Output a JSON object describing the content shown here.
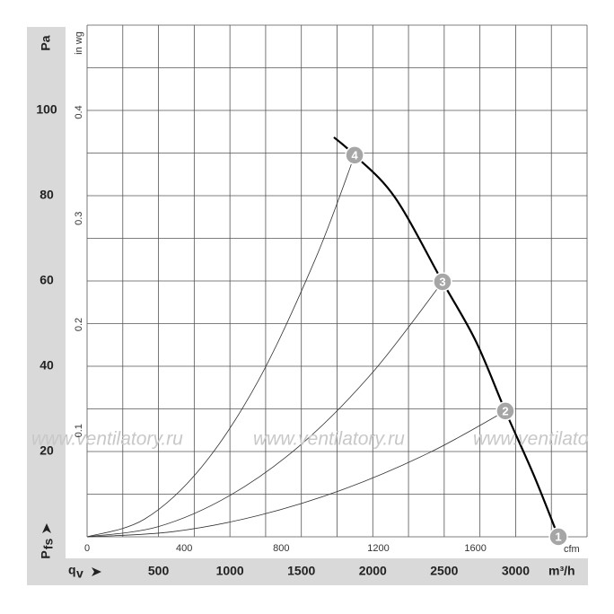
{
  "chart_data": {
    "type": "line",
    "y_unit": "Pa",
    "y2_unit": "in wg",
    "y_label": "P",
    "y_label_sub": "fs",
    "x_label": "q",
    "x_label_sub": "v",
    "x_unit": "m³/h",
    "x2_unit": "cfm",
    "watermark": "www.ventilatory.ru",
    "xlim": [
      0,
      3500
    ],
    "xticks": [
      500,
      1000,
      1500,
      2000,
      2500,
      3000
    ],
    "xgrid": [
      250,
      500,
      750,
      1000,
      1250,
      1500,
      1750,
      2000,
      2250,
      2500,
      2750,
      3000,
      3250,
      3500
    ],
    "ylim": [
      0,
      120
    ],
    "yticks": [
      20,
      40,
      60,
      80,
      100
    ],
    "ygrid": [
      10,
      20,
      30,
      40,
      50,
      60,
      70,
      80,
      90,
      100,
      110,
      120
    ],
    "x2lim": [
      0,
      2060
    ],
    "x2ticks": [
      0,
      400,
      800,
      1200,
      1600
    ],
    "y2lim": [
      0,
      0.482
    ],
    "y2ticks": [
      0.1,
      0.2,
      0.3,
      0.4
    ],
    "grid": true,
    "series": [
      {
        "color": "#000000",
        "width": 2.2,
        "x": [
          1728,
          1873,
          2155,
          2488,
          2721,
          2928,
          3129,
          3299
        ],
        "values": [
          93.7,
          89.5,
          79.6,
          59.8,
          45.9,
          29.5,
          14.3,
          0
        ]
      },
      {
        "color": "#333333",
        "width": 0.8,
        "x": [
          0,
          400,
          800,
          1200,
          1600,
          1873
        ],
        "values": [
          0,
          4.1,
          16.3,
          36.7,
          65.3,
          89.5
        ]
      },
      {
        "color": "#333333",
        "width": 0.8,
        "x": [
          0,
          500,
          1000,
          1500,
          2000,
          2488
        ],
        "values": [
          0,
          2.4,
          9.7,
          21.7,
          38.6,
          59.8
        ]
      },
      {
        "color": "#333333",
        "width": 0.8,
        "x": [
          0,
          600,
          1200,
          1800,
          2400,
          2928
        ],
        "values": [
          0,
          1.2,
          5.0,
          11.2,
          19.8,
          29.5
        ]
      }
    ],
    "points": [
      {
        "label": "1",
        "x": 3299,
        "y": 0
      },
      {
        "label": "2",
        "x": 2928,
        "y": 29.5
      },
      {
        "label": "3",
        "x": 2488,
        "y": 59.8
      },
      {
        "label": "4",
        "x": 1873,
        "y": 89.5
      }
    ],
    "point_color": "#a6a6a6"
  }
}
